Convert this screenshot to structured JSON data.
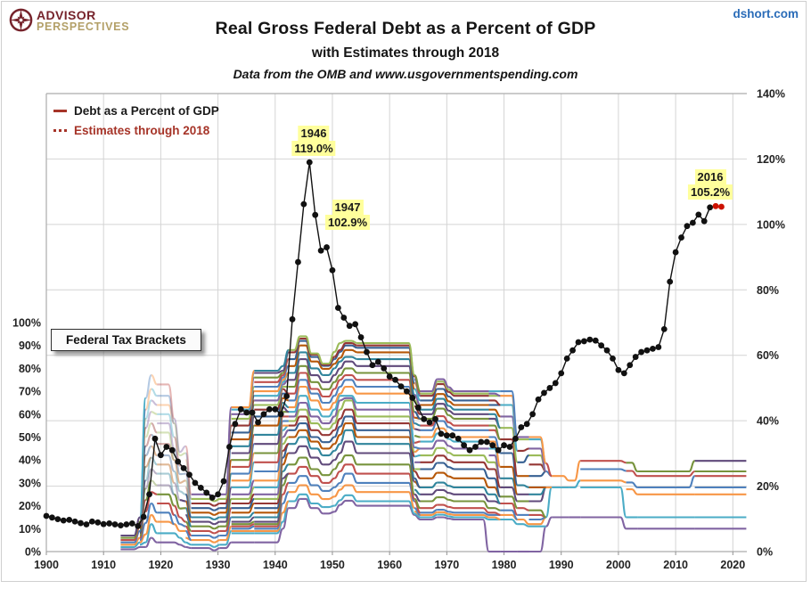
{
  "header": {
    "logo_line1": "ADVISOR",
    "logo_line2": "PERSPECTIVES",
    "site_link": "dshort.com"
  },
  "title": "Real Gross Federal Debt as a Percent of GDP",
  "subtitle": "with Estimates through 2018",
  "source_line": "Data from the OMB and www.usgovernmentspending.com",
  "legend": {
    "items": [
      {
        "label": "Debt as a Percent of GDP",
        "style": "solid",
        "color": "#A63428",
        "text_color": "#1A1A1A"
      },
      {
        "label": "Estimates through 2018",
        "style": "dotted",
        "color": "#A63428",
        "text_color": "#A63428"
      }
    ]
  },
  "tax_brackets_label": "Federal Tax Brackets",
  "annotations": {
    "a1946": {
      "year": "1946",
      "value": "119.0%"
    },
    "a1947": {
      "year": "1947",
      "value": "102.9%"
    },
    "a2016": {
      "year": "2016",
      "value": "105.2%"
    }
  },
  "chart_data": {
    "type": "line",
    "title": "Real Gross Federal Debt as a Percent of GDP",
    "x_axis": {
      "range": [
        1900,
        2022
      ],
      "ticks": [
        1900,
        1910,
        1920,
        1930,
        1940,
        1950,
        1960,
        1970,
        1980,
        1990,
        2000,
        2010,
        2020
      ],
      "labels": [
        "1900",
        "1910",
        "1920",
        "1930",
        "1940",
        "1950",
        "1960",
        "1970",
        "1980",
        "1990",
        "2000",
        "2010",
        "2020"
      ]
    },
    "right_axis": {
      "range": [
        0,
        140
      ],
      "ticks": [
        0,
        20,
        40,
        60,
        80,
        100,
        120,
        140
      ],
      "labels": [
        "0%",
        "20%",
        "40%",
        "60%",
        "80%",
        "100%",
        "120%",
        "140%"
      ],
      "series": "debt"
    },
    "left_axis": {
      "range": [
        0,
        200
      ],
      "ticks": [
        0,
        10,
        20,
        30,
        40,
        50,
        60,
        70,
        80,
        90,
        100
      ],
      "labels": [
        "0%",
        "10%",
        "20%",
        "30%",
        "40%",
        "50%",
        "60%",
        "70%",
        "80%",
        "90%",
        "100%"
      ],
      "series": "tax brackets"
    },
    "grid": true,
    "debt_series": {
      "name": "Debt as a Percent of GDP",
      "color": "#111111",
      "start_year": 1900,
      "values": [
        10.9,
        10.4,
        9.9,
        9.5,
        9.7,
        9.2,
        8.7,
        8.3,
        9.2,
        8.9,
        8.4,
        8.6,
        8.3,
        8.0,
        8.3,
        8.6,
        7.8,
        10.6,
        17.5,
        34.5,
        29.5,
        32.0,
        31.0,
        27.5,
        25.5,
        23.5,
        21.0,
        19.5,
        18.0,
        16.5,
        17.5,
        21.5,
        32.0,
        39.0,
        43.5,
        42.5,
        42.5,
        39.5,
        42.0,
        43.5,
        43.5,
        42.0,
        47.5,
        71.0,
        88.5,
        106.2,
        119.0,
        102.9,
        92.0,
        93.0,
        86.0,
        74.5,
        71.5,
        69.0,
        69.5,
        65.5,
        61.0,
        57.0,
        58.0,
        56.0,
        53.5,
        52.5,
        50.5,
        49.0,
        47.0,
        44.0,
        40.5,
        39.5,
        40.5,
        36.0,
        35.5,
        35.5,
        34.5,
        32.5,
        31.0,
        32.0,
        33.5,
        33.5,
        32.5,
        31.0,
        32.5,
        32.0,
        34.5,
        38.0,
        39.0,
        42.0,
        46.5,
        48.5,
        50.0,
        51.5,
        54.5,
        59.0,
        61.5,
        64.0,
        64.3,
        64.8,
        64.5,
        63.0,
        61.5,
        59.0,
        55.5,
        54.5,
        57.0,
        59.5,
        61.0,
        61.5,
        62.0,
        62.5,
        68.0,
        82.5,
        91.5,
        96.0,
        99.5,
        100.5,
        103.0,
        101.0,
        105.2
      ]
    },
    "estimates_series": {
      "name": "Estimates through 2018",
      "color": "#CC1100",
      "years": [
        2017,
        2018
      ],
      "values": [
        105.6,
        105.4
      ]
    },
    "palette": [
      "#8064A2",
      "#4BACC6",
      "#F79646",
      "#4F81BD",
      "#C0504D",
      "#77933C",
      "#604A7B",
      "#31859C",
      "#B65708",
      "#376092",
      "#953735",
      "#9BBB59"
    ],
    "tax_bracket_eras": [
      [
        1913,
        1915,
        0,
        [
          1,
          2,
          3,
          4,
          5,
          6,
          7
        ]
      ],
      [
        1916,
        1916,
        0,
        [
          2,
          3,
          4,
          5,
          6,
          7,
          8,
          9,
          10,
          11,
          12,
          13,
          14,
          15
        ]
      ],
      [
        1917,
        1917,
        1,
        [
          2,
          4,
          7.5,
          12.5,
          17.5,
          22.5,
          27.5,
          31,
          37,
          42,
          46,
          50,
          54,
          58,
          62,
          67
        ]
      ],
      [
        1918,
        1918,
        1,
        [
          6,
          12,
          16,
          21,
          26,
          31,
          36,
          41,
          46,
          51,
          56,
          61,
          66,
          71,
          77
        ]
      ],
      [
        1919,
        1921,
        1,
        [
          4,
          8,
          13,
          17,
          21,
          25,
          29,
          34,
          38,
          42,
          47,
          52,
          56,
          60,
          64,
          68,
          73
        ]
      ],
      [
        1922,
        1922,
        1,
        [
          4,
          8,
          12,
          16,
          20,
          25,
          30,
          35,
          40,
          45,
          50,
          56,
          58
        ]
      ],
      [
        1923,
        1923,
        1,
        [
          3,
          6,
          9,
          12,
          15,
          18.8,
          22.5,
          26.3,
          30,
          33.8,
          37.5,
          42,
          43.5
        ]
      ],
      [
        1924,
        1924,
        1,
        [
          2,
          4,
          6,
          9,
          11,
          13,
          16,
          19,
          22,
          25,
          28,
          31,
          34,
          37,
          40,
          43,
          46
        ]
      ],
      [
        1925,
        1928,
        0,
        [
          1.5,
          3,
          5,
          7,
          9,
          11,
          13,
          15,
          17,
          19,
          21,
          23,
          25
        ]
      ],
      [
        1929,
        1929,
        0,
        [
          0.5,
          2,
          4,
          6,
          8,
          10,
          12,
          14,
          16,
          18,
          20,
          22,
          24
        ]
      ],
      [
        1930,
        1931,
        0,
        [
          1.5,
          3,
          5,
          7,
          9,
          11,
          13,
          15,
          17,
          19,
          21,
          23,
          25
        ]
      ],
      [
        1932,
        1935,
        0,
        [
          4,
          8,
          9,
          10,
          11,
          12,
          13,
          15,
          17,
          19,
          21,
          23,
          25,
          28,
          31,
          34,
          37,
          40,
          43,
          46,
          49,
          52,
          55,
          58,
          60,
          62,
          63
        ]
      ],
      [
        1936,
        1940,
        0,
        [
          4,
          8,
          9,
          10,
          11,
          12,
          13,
          15,
          17,
          19,
          21,
          23,
          25,
          28,
          31,
          35,
          39,
          43,
          47,
          51,
          55,
          59,
          62,
          64,
          66,
          68,
          70,
          72,
          74,
          76,
          78,
          79
        ]
      ],
      [
        1941,
        1941,
        0,
        [
          10,
          13,
          17,
          21,
          25,
          29,
          32,
          35,
          38,
          41,
          44,
          47,
          50,
          53,
          55,
          57,
          59,
          61,
          63,
          65,
          67,
          69,
          71,
          72,
          73,
          74,
          75,
          76,
          77,
          78,
          79,
          81
        ]
      ],
      [
        1942,
        1943,
        0,
        [
          19,
          22,
          26,
          30,
          34,
          38,
          43,
          47,
          50,
          53,
          55,
          57,
          59,
          61,
          63,
          66,
          69,
          72,
          75,
          78,
          81,
          84,
          87,
          88
        ]
      ],
      [
        1944,
        1945,
        0,
        [
          23,
          25,
          29,
          33,
          37,
          41,
          46,
          50,
          53,
          56,
          59,
          62,
          65,
          68,
          72,
          75,
          78,
          81,
          84,
          87,
          90,
          92,
          93,
          94
        ]
      ],
      [
        1946,
        1947,
        0,
        [
          19,
          21,
          25,
          29,
          33,
          36,
          41,
          45,
          48,
          50,
          53,
          56,
          59,
          62,
          66,
          69,
          71,
          74,
          77,
          80,
          83,
          85,
          86,
          86.5
        ]
      ],
      [
        1948,
        1949,
        0,
        [
          16.6,
          19.4,
          22.9,
          26.5,
          30,
          33.4,
          38,
          42,
          45,
          47.8,
          50.9,
          53.5,
          56,
          59,
          62,
          65,
          67.7,
          70.9,
          74,
          77.1,
          79.8,
          81.1,
          81.6,
          82.1
        ]
      ],
      [
        1950,
        1950,
        0,
        [
          17.4,
          20,
          24,
          28,
          32,
          36,
          40,
          44,
          47,
          50,
          53,
          56,
          59,
          62,
          65,
          68,
          71,
          74,
          77,
          80,
          82,
          84,
          85,
          87.2
        ]
      ],
      [
        1951,
        1951,
        0,
        [
          20.4,
          22.4,
          27,
          30,
          35,
          39,
          43,
          47,
          51,
          54.6,
          58,
          62,
          66,
          68,
          69,
          72,
          75,
          77,
          80,
          83,
          84.6,
          87.2,
          88,
          91
        ]
      ],
      [
        1952,
        1953,
        0,
        [
          22.2,
          24.6,
          29,
          34,
          38,
          42,
          48,
          53,
          56,
          59,
          62,
          66,
          67,
          68,
          72,
          75,
          77,
          80,
          83,
          85,
          88,
          90,
          91,
          92
        ]
      ],
      [
        1954,
        1963,
        0,
        [
          20,
          22,
          26,
          30,
          34,
          38,
          43,
          47,
          50,
          53,
          56,
          59,
          62,
          65,
          69,
          72,
          75,
          78,
          81,
          84,
          87,
          89,
          90,
          91
        ]
      ],
      [
        1964,
        1964,
        0,
        [
          16,
          16.5,
          17.5,
          19,
          22,
          23,
          25,
          27,
          30.5,
          32,
          35,
          36,
          39,
          41.5,
          43.5,
          45.5,
          47.5,
          50.5,
          53.5,
          56,
          58.5,
          61,
          63.5,
          66,
          68.5,
          71,
          73.5,
          75.25,
          76.5,
          77
        ]
      ],
      [
        1965,
        1967,
        0,
        [
          14,
          15,
          16,
          17,
          19,
          22,
          25,
          28,
          32,
          36,
          39,
          42,
          45,
          48,
          50,
          53,
          55,
          58,
          60,
          62,
          64,
          66,
          68,
          69,
          70
        ]
      ],
      [
        1968,
        1969,
        0,
        [
          15,
          16.1,
          17.2,
          18.3,
          20.4,
          23.7,
          26.9,
          30.1,
          34.4,
          38.7,
          41.9,
          45.2,
          48.4,
          51.6,
          53.8,
          57,
          59.1,
          62.4,
          64.5,
          66.7,
          68.8,
          71,
          73.1,
          74.2,
          75.25
        ]
      ],
      [
        1970,
        1970,
        0,
        [
          14.4,
          15.4,
          16.4,
          17.4,
          19.5,
          22.6,
          25.6,
          28.7,
          32.8,
          36.9,
          40,
          43.1,
          46.1,
          49.2,
          51.3,
          54.3,
          56.4,
          59.5,
          61.5,
          63.6,
          65.6,
          67.7,
          69.7,
          70.7,
          71.75
        ]
      ],
      [
        1971,
        1976,
        0,
        [
          14,
          15,
          16,
          17,
          19,
          22,
          25,
          28,
          32,
          36,
          39,
          42,
          45,
          48,
          50,
          53,
          55,
          58,
          60,
          62,
          64,
          66,
          68,
          69,
          70
        ]
      ],
      [
        1977,
        1978,
        0,
        [
          0,
          14,
          15,
          16,
          17,
          19,
          22,
          25,
          28,
          32,
          36,
          39,
          42,
          45,
          48,
          50,
          53,
          55,
          58,
          60,
          62,
          64,
          66,
          68,
          69,
          70
        ]
      ],
      [
        1979,
        1981,
        0,
        [
          0,
          14,
          16,
          18,
          21,
          24,
          28,
          32,
          37,
          43,
          49,
          54,
          59,
          64,
          68,
          70
        ]
      ],
      [
        1982,
        1983,
        0,
        [
          0,
          12,
          14,
          16,
          19,
          22,
          25,
          29,
          33,
          39,
          44,
          49,
          50
        ]
      ],
      [
        1984,
        1986,
        0,
        [
          0,
          11,
          12,
          14,
          16,
          18,
          22,
          25,
          28,
          33,
          38,
          42,
          45,
          49,
          50
        ]
      ],
      [
        1987,
        1987,
        0,
        [
          11,
          15,
          28,
          35,
          38.5
        ]
      ],
      [
        1988,
        1990,
        0,
        [
          15,
          28,
          33
        ]
      ],
      [
        1991,
        1992,
        0,
        [
          15,
          28,
          31
        ]
      ],
      [
        1993,
        2000,
        0,
        [
          15,
          28,
          31,
          36,
          39.6
        ]
      ],
      [
        2001,
        2002,
        0,
        [
          10,
          15,
          27.2,
          30.2,
          35.2,
          38.8
        ]
      ],
      [
        2003,
        2012,
        0,
        [
          10,
          15,
          25,
          28,
          33,
          35
        ]
      ],
      [
        2013,
        2022,
        0,
        [
          10,
          15,
          25,
          28,
          33,
          35,
          39.6
        ]
      ]
    ]
  }
}
